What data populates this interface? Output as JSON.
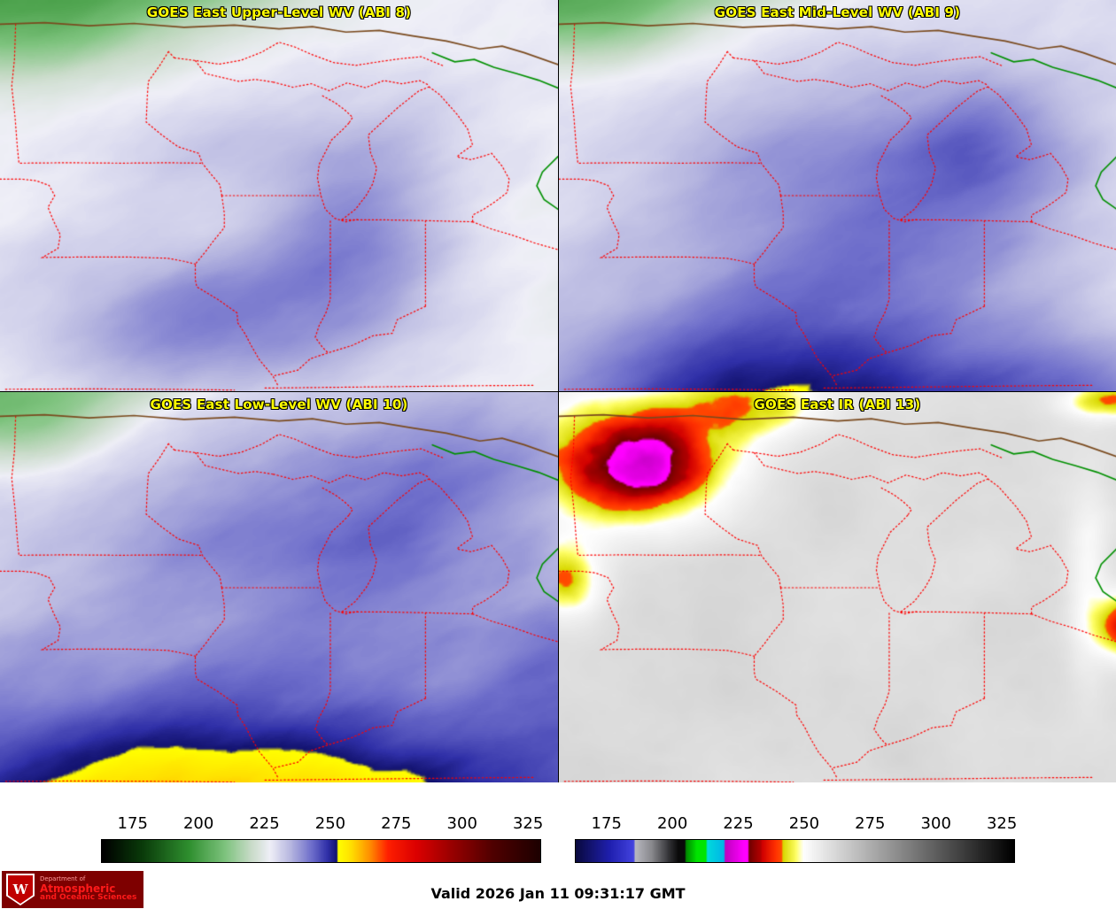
{
  "panels": [
    {
      "id": "abi8",
      "title": "GOES East Upper-Level WV (ABI 8)"
    },
    {
      "id": "abi9",
      "title": "GOES East Mid-Level WV (ABI 9)"
    },
    {
      "id": "abi10",
      "title": "GOES East Low-Level WV (ABI 10)"
    },
    {
      "id": "abi13",
      "title": "GOES East IR (ABI 13)"
    }
  ],
  "colorbars": {
    "wv": {
      "ticks": [
        "175",
        "200",
        "225",
        "250",
        "275",
        "300",
        "325"
      ],
      "range": [
        163,
        330
      ],
      "stops": [
        [
          163,
          "#000000"
        ],
        [
          178,
          "#0a3a0a"
        ],
        [
          196,
          "#2f8f2f"
        ],
        [
          210,
          "#7fc47f"
        ],
        [
          220,
          "#cadcca"
        ],
        [
          227,
          "#efeff7"
        ],
        [
          235,
          "#b6b6e0"
        ],
        [
          243,
          "#6e6ecb"
        ],
        [
          249,
          "#3030a8"
        ],
        [
          252.6,
          "#12126e"
        ],
        [
          253.0,
          "#ffff00"
        ],
        [
          258,
          "#ffe000"
        ],
        [
          265,
          "#ff9000"
        ],
        [
          272,
          "#ff2000"
        ],
        [
          283,
          "#dc0000"
        ],
        [
          297,
          "#960000"
        ],
        [
          312,
          "#500000"
        ],
        [
          330,
          "#1e0000"
        ]
      ]
    },
    "ir": {
      "ticks": [
        "175",
        "200",
        "225",
        "250",
        "275",
        "300",
        "325"
      ],
      "range": [
        163,
        330
      ],
      "stops": [
        [
          163,
          "#0a0a40"
        ],
        [
          176,
          "#2020b0"
        ],
        [
          185,
          "#4444e0"
        ],
        [
          185.5,
          "#b8b8c0"
        ],
        [
          192,
          "#88888c"
        ],
        [
          198,
          "#38383c"
        ],
        [
          202,
          "#0a0a0a"
        ],
        [
          204.5,
          "#0a0a0a"
        ],
        [
          205,
          "#008800"
        ],
        [
          209,
          "#00e400"
        ],
        [
          212.5,
          "#00e400"
        ],
        [
          213,
          "#00dcdc"
        ],
        [
          219.5,
          "#00b4e8"
        ],
        [
          220,
          "#c000c0"
        ],
        [
          227,
          "#ff00ff"
        ],
        [
          228.5,
          "#ff00ff"
        ],
        [
          229,
          "#700000"
        ],
        [
          233.5,
          "#b40000"
        ],
        [
          234,
          "#d00000"
        ],
        [
          239,
          "#ff3000"
        ],
        [
          241.5,
          "#ff5000"
        ],
        [
          242,
          "#d8d800"
        ],
        [
          247,
          "#ffff66"
        ],
        [
          249.8,
          "#ffffff"
        ],
        [
          330,
          "#000000"
        ]
      ]
    }
  },
  "overlay_colors": {
    "state_border": "#ff0000",
    "intl_border": "#7a4a1e",
    "water_line": "#009000",
    "title_color": "#ffff00"
  },
  "footer": {
    "valid": "Valid 2026 Jan 11 09:31:17 GMT"
  },
  "logo": {
    "letter": "W",
    "dept": "Department of",
    "line1": "Atmospheric",
    "line2": "and Oceanic Sciences"
  }
}
